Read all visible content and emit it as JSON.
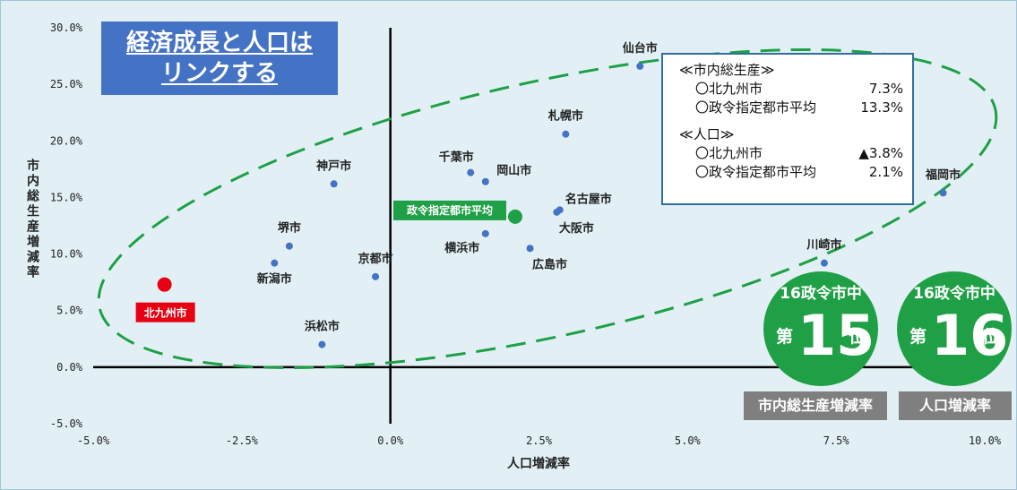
{
  "title_box": {
    "line1": "経済成長と人口は",
    "line2": "リンクする"
  },
  "info_box": {
    "gdp_header": "≪市内総生産≫",
    "gdp_rows": [
      {
        "label": "〇北九州市",
        "value": "7.3%"
      },
      {
        "label": "〇政令指定都市平均",
        "value": "13.3%"
      }
    ],
    "pop_header": "≪人口≫",
    "pop_rows": [
      {
        "label": "〇北九州市",
        "value": "▲3.8%"
      },
      {
        "label": "〇政令指定都市平均",
        "value": "2.1%"
      }
    ]
  },
  "rank_badges": [
    {
      "top": "16政令市中",
      "prefix": "第",
      "rank": "15",
      "suffix": "位",
      "label": "市内総生産増減率"
    },
    {
      "top": "16政令市中",
      "prefix": "第",
      "rank": "16",
      "suffix": "位",
      "label": "人口増減率"
    }
  ],
  "colors": {
    "point": "#4472c4",
    "highlight": "#e60012",
    "average": "#1fa046",
    "ellipse": "#1fa046",
    "background": "#e2f0f5"
  },
  "chart_data": {
    "type": "scatter",
    "xlabel": "人口増減率",
    "ylabel": "市内総生産増減率",
    "xlim": [
      -5.0,
      10.0
    ],
    "ylim": [
      -5.0,
      30.0
    ],
    "xticks": [
      "-5.0%",
      "-2.5%",
      "0.0%",
      "2.5%",
      "5.0%",
      "7.5%",
      "10.0%"
    ],
    "yticks": [
      "30.0%",
      "25.0%",
      "20.0%",
      "15.0%",
      "10.0%",
      "5.0%",
      "0.0%",
      "-5.0%"
    ],
    "grid": false,
    "points": [
      {
        "name": "仙台市",
        "x": 4.2,
        "y": 26.6,
        "label_pos": "above"
      },
      {
        "name": "札幌市",
        "x": 2.95,
        "y": 20.6,
        "label_pos": "above"
      },
      {
        "name": "千葉市",
        "x": 1.35,
        "y": 17.2,
        "label_pos": "above-left"
      },
      {
        "name": "岡山市",
        "x": 1.6,
        "y": 16.4,
        "label_pos": "above-right"
      },
      {
        "name": "名古屋市",
        "x": 2.85,
        "y": 13.9,
        "label_pos": "above-right"
      },
      {
        "name": "大阪市",
        "x": 2.8,
        "y": 13.7,
        "label_pos": "below-right"
      },
      {
        "name": "横浜市",
        "x": 1.6,
        "y": 11.8,
        "label_pos": "below-left"
      },
      {
        "name": "広島市",
        "x": 2.35,
        "y": 10.5,
        "label_pos": "below-right"
      },
      {
        "name": "神戸市",
        "x": -0.95,
        "y": 16.2,
        "label_pos": "above"
      },
      {
        "name": "堺市",
        "x": -1.7,
        "y": 10.7,
        "label_pos": "above"
      },
      {
        "name": "新潟市",
        "x": -1.95,
        "y": 9.2,
        "label_pos": "below"
      },
      {
        "name": "京都市",
        "x": -0.25,
        "y": 8.0,
        "label_pos": "above"
      },
      {
        "name": "浜松市",
        "x": -1.15,
        "y": 2.0,
        "label_pos": "above"
      },
      {
        "name": "川崎市",
        "x": 7.3,
        "y": 9.2,
        "label_pos": "above"
      },
      {
        "name": "福岡市",
        "x": 9.3,
        "y": 15.4,
        "label_pos": "above"
      }
    ],
    "highlight": {
      "name": "北九州市",
      "x": -3.8,
      "y": 7.3
    },
    "average": {
      "name": "政令指定都市平均",
      "x": 2.1,
      "y": 13.3
    }
  }
}
